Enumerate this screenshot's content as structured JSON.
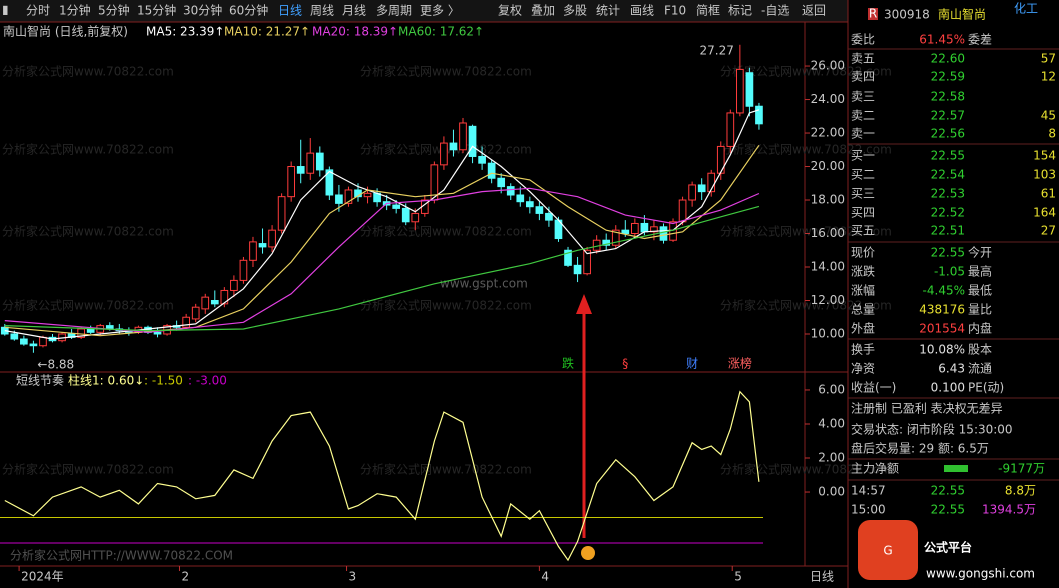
{
  "toolbar": {
    "left": [
      "分时",
      "1分钟",
      "5分钟",
      "15分钟",
      "30分钟",
      "60分钟",
      "日线",
      "周线",
      "月线",
      "多周期",
      "更多 〉"
    ],
    "right": [
      "复权",
      "叠加",
      "多股",
      "统计",
      "画线",
      "F10",
      "简框",
      "标记",
      "-自选",
      "返回"
    ],
    "active": "日线"
  },
  "watermark": "分析家公式网www.70822.com",
  "watermark2": "www.gspt.com",
  "watermark3": "分析家公式网HTTP://WWW.70822.COM",
  "chart_data": [
    {
      "type": "candlestick",
      "title": "南山智尚 (日线,前复权)",
      "open": [
        10.4,
        10.0,
        9.7,
        9.4,
        9.3,
        9.8,
        9.6,
        10.0,
        9.8,
        10.3,
        10.1,
        10.5,
        10.3,
        10.2,
        10.1,
        10.4,
        10.1,
        10.0,
        10.5,
        10.4,
        10.9,
        11.5,
        12.0,
        11.8,
        12.6,
        13.2,
        14.4,
        15.4,
        15.2,
        16.2,
        18.2,
        20.0,
        19.6,
        20.8,
        19.8,
        18.3,
        17.8,
        18.6,
        18.2,
        18.4,
        17.9,
        17.7,
        17.5,
        16.7,
        17.2,
        18.0,
        20.1,
        21.4,
        21.0,
        22.4,
        20.6,
        20.2,
        19.3,
        18.8,
        18.3,
        17.9,
        17.6,
        17.2,
        16.8,
        15.0,
        14.1,
        13.6,
        15.0,
        15.6,
        15.3,
        16.2,
        16.0,
        16.6,
        16.1,
        16.4,
        15.6,
        16.7,
        18.0,
        18.9,
        18.5,
        19.6,
        21.2,
        23.2,
        25.6,
        23.6
      ],
      "high": [
        10.6,
        10.2,
        9.9,
        9.6,
        9.9,
        10.0,
        10.1,
        10.3,
        10.4,
        10.5,
        10.6,
        10.7,
        10.6,
        10.4,
        10.5,
        10.5,
        10.4,
        10.6,
        10.8,
        11.2,
        11.8,
        12.4,
        12.6,
        12.8,
        13.5,
        14.6,
        15.8,
        16.3,
        16.5,
        18.4,
        20.3,
        21.6,
        21.7,
        21.2,
        20.0,
        18.9,
        18.8,
        19.0,
        18.8,
        18.7,
        18.3,
        18.0,
        17.8,
        17.5,
        18.3,
        20.3,
        21.8,
        22.2,
        22.9,
        22.5,
        21.2,
        20.4,
        19.6,
        19.0,
        18.8,
        18.2,
        17.9,
        17.6,
        17.0,
        15.2,
        14.6,
        15.2,
        15.9,
        16.0,
        16.5,
        16.8,
        16.9,
        17.1,
        16.8,
        16.6,
        16.9,
        18.2,
        19.1,
        19.3,
        19.8,
        21.5,
        23.4,
        27.27,
        25.9,
        23.8
      ],
      "low": [
        9.9,
        9.6,
        9.3,
        8.88,
        9.2,
        9.5,
        9.5,
        9.7,
        9.7,
        10.0,
        9.9,
        10.2,
        10.0,
        9.9,
        10.0,
        10.0,
        9.8,
        9.9,
        10.2,
        10.3,
        10.7,
        11.2,
        11.6,
        11.6,
        12.2,
        13.0,
        14.0,
        14.8,
        14.9,
        16.0,
        17.9,
        19.0,
        19.2,
        19.4,
        18.0,
        17.3,
        17.6,
        17.9,
        17.8,
        17.6,
        17.4,
        17.2,
        16.5,
        16.2,
        17.0,
        17.8,
        19.8,
        20.6,
        20.8,
        20.2,
        19.8,
        19.0,
        18.4,
        18.0,
        17.6,
        17.2,
        16.8,
        16.4,
        15.5,
        14.0,
        13.1,
        13.5,
        14.8,
        15.0,
        15.1,
        15.8,
        15.7,
        15.9,
        15.6,
        15.4,
        15.5,
        16.5,
        17.6,
        18.0,
        18.2,
        19.2,
        20.8,
        23.0,
        23.0,
        22.2
      ],
      "close": [
        10.0,
        9.7,
        9.4,
        9.3,
        9.8,
        9.6,
        10.0,
        9.8,
        10.3,
        10.1,
        10.5,
        10.3,
        10.2,
        10.1,
        10.4,
        10.1,
        10.0,
        10.5,
        10.4,
        11.0,
        11.6,
        12.2,
        11.8,
        12.6,
        13.2,
        14.4,
        15.5,
        15.2,
        16.2,
        18.2,
        20.0,
        19.6,
        20.8,
        19.8,
        18.3,
        17.8,
        18.6,
        18.2,
        18.4,
        17.9,
        17.7,
        17.5,
        16.7,
        17.2,
        18.0,
        20.1,
        21.4,
        21.0,
        22.6,
        20.6,
        20.2,
        19.3,
        18.8,
        18.3,
        17.9,
        17.6,
        17.2,
        16.8,
        15.7,
        14.1,
        13.6,
        15.0,
        15.6,
        15.3,
        16.2,
        16.0,
        16.6,
        16.1,
        16.4,
        15.6,
        16.7,
        18.0,
        18.9,
        18.5,
        19.6,
        21.2,
        23.2,
        25.8,
        23.6,
        22.55
      ],
      "up_color": "#ff3c3c",
      "down_color": "#54fcfc",
      "high_label": "27.27",
      "low_label": "←8.88",
      "series": [
        {
          "name": "MA5",
          "label": "MA5: 23.39↑",
          "color": "#ffffff",
          "x": [
            0,
            5,
            10,
            15,
            20,
            25,
            28,
            31,
            34,
            37,
            40,
            43,
            46,
            49,
            52,
            55,
            58,
            61,
            64,
            67,
            70,
            73,
            76,
            78,
            79
          ],
          "values": [
            10.2,
            9.7,
            10.0,
            10.3,
            10.6,
            12.7,
            14.8,
            18.0,
            19.7,
            18.8,
            18.2,
            17.3,
            18.6,
            21.2,
            20.0,
            18.5,
            16.8,
            14.8,
            15.1,
            16.1,
            16.2,
            17.6,
            20.7,
            23.2,
            23.39
          ]
        },
        {
          "name": "MA10",
          "label": "MA10: 21.27↑",
          "color": "#e8d060",
          "x": [
            0,
            10,
            20,
            25,
            30,
            34,
            38,
            43,
            47,
            51,
            55,
            59,
            63,
            67,
            71,
            75,
            79
          ],
          "values": [
            10.4,
            9.9,
            10.4,
            11.5,
            14.3,
            17.2,
            18.6,
            18.2,
            18.4,
            19.6,
            19.2,
            17.6,
            16.2,
            15.7,
            16.1,
            18.0,
            21.27
          ]
        },
        {
          "name": "MA20",
          "label": "MA20: 18.39↑",
          "color": "#e040e0",
          "x": [
            0,
            15,
            25,
            30,
            35,
            40,
            45,
            50,
            55,
            60,
            65,
            70,
            75,
            79
          ],
          "values": [
            10.8,
            10.1,
            10.7,
            12.4,
            15.2,
            17.8,
            18.0,
            18.5,
            18.7,
            18.2,
            17.1,
            16.6,
            17.4,
            18.39
          ]
        },
        {
          "name": "MA60",
          "label": "MA60: 17.62↑",
          "color": "#40c840",
          "x": [
            0,
            15,
            25,
            35,
            45,
            55,
            60,
            65,
            70,
            75,
            79
          ],
          "values": [
            10.5,
            10.2,
            10.3,
            11.5,
            13.0,
            14.2,
            15.0,
            15.6,
            16.2,
            17.0,
            17.62
          ]
        }
      ],
      "ylim": [
        7.85,
        28.63
      ],
      "yticks": [
        {
          "value": 10,
          "label": "10.00"
        },
        {
          "value": 12,
          "label": "12.00"
        },
        {
          "value": 14,
          "label": "14.00"
        },
        {
          "value": 16,
          "label": "16.00"
        },
        {
          "value": 18,
          "label": "18.00"
        },
        {
          "value": 20,
          "label": "20.00"
        },
        {
          "value": 22,
          "label": "22.00"
        },
        {
          "value": 24,
          "label": "24.00"
        },
        {
          "value": 26,
          "label": "26.00"
        }
      ],
      "grid": false,
      "signals": [
        {
          "x": 59,
          "label": "跌",
          "color": "#20c020"
        },
        {
          "x": 65,
          "label": "§",
          "color": "#ff4040"
        },
        {
          "x": 72,
          "label": "财",
          "color": "#4080ff"
        },
        {
          "x": 77,
          "label": "涨榜",
          "color": "#ff6060"
        }
      ]
    },
    {
      "type": "line",
      "title": "短线节奏",
      "series": [
        {
          "name": "柱线1",
          "label": "柱线1: 0.60↓",
          "color": "#ffff90",
          "x": [
            0,
            3,
            5,
            8,
            10,
            12,
            14,
            16,
            18,
            20,
            22,
            24,
            26,
            28,
            30,
            32,
            34,
            36,
            37,
            39,
            41,
            43,
            45,
            46,
            48,
            50,
            52,
            53,
            55,
            56,
            58,
            59,
            60,
            62,
            64,
            66,
            68,
            70,
            72,
            73,
            74,
            75,
            76,
            77,
            78,
            79
          ],
          "values": [
            -0.5,
            -1.4,
            -0.3,
            0.3,
            -0.3,
            0.1,
            -0.7,
            0.5,
            0.3,
            -0.4,
            -0.2,
            1.3,
            0.8,
            3.0,
            4.5,
            4.7,
            2.7,
            -1.0,
            -0.8,
            -0.1,
            -0.3,
            -1.6,
            3.0,
            4.7,
            4.1,
            -0.3,
            -2.6,
            -0.7,
            -1.6,
            -1.1,
            -3.2,
            -4.0,
            -2.9,
            0.5,
            1.9,
            0.9,
            -0.5,
            0.3,
            2.9,
            2.5,
            2.7,
            2.2,
            3.7,
            5.9,
            5.3,
            0.6
          ]
        }
      ],
      "lines": [
        {
          "value": -1.5,
          "label": ": -1.50",
          "color": "#c8c800"
        },
        {
          "value": -3.0,
          "label": ": -3.00",
          "color": "#c800c8"
        }
      ],
      "ylim": [
        -4.29,
        6.88
      ],
      "yticks": [
        {
          "value": 0,
          "label": "0.00"
        },
        {
          "value": 2,
          "label": "2.00"
        },
        {
          "value": 4,
          "label": "4.00"
        },
        {
          "value": 6,
          "label": "6.00"
        }
      ],
      "xlim": [
        -0.5,
        83.3
      ],
      "xticks": [
        {
          "value": 1.5,
          "label": "2024年"
        },
        {
          "value": 18.3,
          "label": "2"
        },
        {
          "value": 35.8,
          "label": "3"
        },
        {
          "value": 56,
          "label": "4"
        },
        {
          "value": 76.2,
          "label": "5"
        }
      ],
      "period": "日线"
    }
  ],
  "quote_panel": {
    "code": "300918",
    "name": "南山智尚",
    "sector": "化工",
    "badge": "R",
    "ratio": {
      "label": "委比",
      "value": "61.45%",
      "label2": "委差"
    },
    "order_book": [
      {
        "label": "卖五",
        "price": "22.60",
        "volume": "57"
      },
      {
        "label": "卖四",
        "price": "22.59",
        "volume": "12"
      },
      {
        "label": "卖三",
        "price": "22.58"
      },
      {
        "label": "卖二",
        "price": "22.57",
        "volume": "45"
      },
      {
        "label": "卖一",
        "price": "22.56",
        "volume": "8"
      },
      {
        "label": "买一",
        "price": "22.55",
        "volume": "154"
      },
      {
        "label": "买二",
        "price": "22.54",
        "volume": "103"
      },
      {
        "label": "买三",
        "price": "22.53",
        "volume": "61"
      },
      {
        "label": "买四",
        "price": "22.52",
        "volume": "164"
      },
      {
        "label": "买五",
        "price": "22.51",
        "volume": "27"
      }
    ],
    "stats": [
      {
        "label": "现价",
        "value": "22.55",
        "label2": "今开",
        "color": "#30d030"
      },
      {
        "label": "涨跌",
        "value": "-1.05",
        "label2": "最高",
        "color": "#30d030"
      },
      {
        "label": "涨幅",
        "value": "-4.45%",
        "label2": "最低",
        "color": "#30d030"
      },
      {
        "label": "总量",
        "value": "438176",
        "label2": "量比",
        "color": "#e8e030"
      },
      {
        "label": "外盘",
        "value": "201554",
        "label2": "内盘",
        "color": "#ff4040"
      }
    ],
    "finance": [
      {
        "label": "换手",
        "value": "10.08%",
        "label2": "股本"
      },
      {
        "label": "净资",
        "value": "6.43",
        "label2": "流通"
      },
      {
        "label": "收益(一)",
        "value": "0.100",
        "label2": "PE(动)"
      }
    ],
    "tags": "注册制 已盈利 表决权无差异",
    "status": "交易状态: 闭市阶段 15:30:00",
    "after_hours": "盘后交易量: 29 额: 6.5万",
    "flow_label": "主力净额",
    "flow_value": "-9177万",
    "ticks": [
      [
        "14:57",
        "22.55",
        "8.8万"
      ],
      [
        "15:00",
        "22.55",
        "1394.5万"
      ]
    ],
    "logo": "公式平台",
    "logo_url": "www.gongshi.com"
  }
}
